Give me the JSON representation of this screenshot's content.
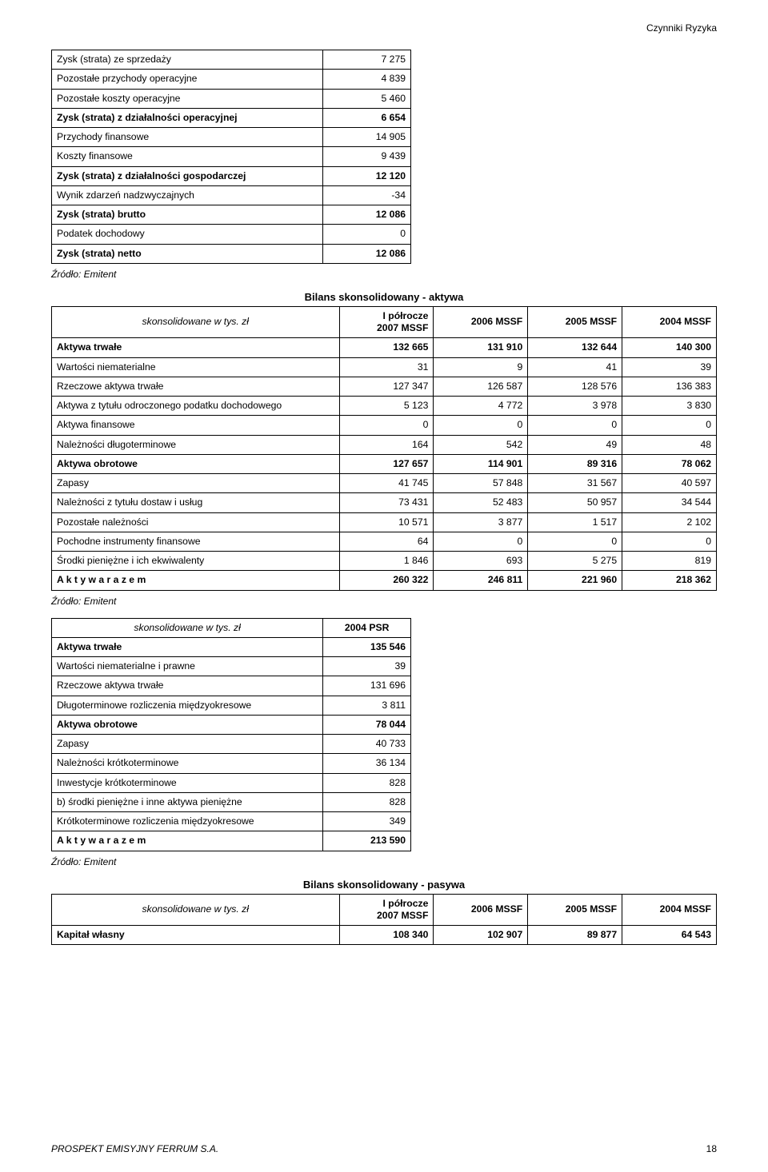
{
  "page": {
    "cornerTop": "Czynniki Ryzyka",
    "footerLeft": "PROSPEKT EMISYJNY FERRUM S.A.",
    "footerRight": "18",
    "sourceNote": "Źródło: Emitent"
  },
  "table1": {
    "rows": [
      {
        "label": "Zysk (strata) ze sprzedaży",
        "value": "7 275",
        "bold": false
      },
      {
        "label": "Pozostałe przychody operacyjne",
        "value": "4 839",
        "bold": false
      },
      {
        "label": "Pozostałe koszty operacyjne",
        "value": "5 460",
        "bold": false
      },
      {
        "label": "Zysk (strata) z działalności operacyjnej",
        "value": "6 654",
        "bold": true
      },
      {
        "label": "Przychody finansowe",
        "value": "14 905",
        "bold": false
      },
      {
        "label": "Koszty finansowe",
        "value": "9 439",
        "bold": false
      },
      {
        "label": "Zysk (strata) z działalności gospodarczej",
        "value": "12 120",
        "bold": true
      },
      {
        "label": "Wynik zdarzeń nadzwyczajnych",
        "value": "-34",
        "bold": false
      },
      {
        "label": "Zysk (strata) brutto",
        "value": "12 086",
        "bold": true
      },
      {
        "label": "Podatek dochodowy",
        "value": "0",
        "bold": false
      },
      {
        "label": "Zysk (strata) netto",
        "value": "12 086",
        "bold": true
      }
    ]
  },
  "table2": {
    "title": "Bilans skonsolidowany - aktywa",
    "headerUnit": "skonsolidowane w tys. zł",
    "headers": [
      "I półrocze\n2007 MSSF",
      "2006 MSSF",
      "2005 MSSF",
      "2004 MSSF"
    ],
    "rows": [
      {
        "label": "Aktywa trwałe",
        "v": [
          "132 665",
          "131 910",
          "132 644",
          "140 300"
        ],
        "bold": true
      },
      {
        "label": "Wartości niematerialne",
        "v": [
          "31",
          "9",
          "41",
          "39"
        ],
        "bold": false
      },
      {
        "label": "Rzeczowe aktywa trwałe",
        "v": [
          "127 347",
          "126 587",
          "128 576",
          "136 383"
        ],
        "bold": false
      },
      {
        "label": "Aktywa z tytułu odroczonego podatku dochodowego",
        "v": [
          "5 123",
          "4 772",
          "3 978",
          "3 830"
        ],
        "bold": false
      },
      {
        "label": "Aktywa finansowe",
        "v": [
          "0",
          "0",
          "0",
          "0"
        ],
        "bold": false
      },
      {
        "label": "Należności długoterminowe",
        "v": [
          "164",
          "542",
          "49",
          "48"
        ],
        "bold": false
      },
      {
        "label": "Aktywa obrotowe",
        "v": [
          "127 657",
          "114 901",
          "89 316",
          "78 062"
        ],
        "bold": true
      },
      {
        "label": "Zapasy",
        "v": [
          "41 745",
          "57 848",
          "31 567",
          "40 597"
        ],
        "bold": false
      },
      {
        "label": "Należności z tytułu dostaw i usług",
        "v": [
          "73 431",
          "52 483",
          "50 957",
          "34 544"
        ],
        "bold": false
      },
      {
        "label": "Pozostałe należności",
        "v": [
          "10 571",
          "3 877",
          "1 517",
          "2 102"
        ],
        "bold": false
      },
      {
        "label": "Pochodne instrumenty finansowe",
        "v": [
          "64",
          "0",
          "0",
          "0"
        ],
        "bold": false
      },
      {
        "label": "Środki pieniężne i ich ekwiwalenty",
        "v": [
          "1 846",
          "693",
          "5 275",
          "819"
        ],
        "bold": false
      },
      {
        "label": "A k t y w a  r a z e m",
        "v": [
          "260 322",
          "246 811",
          "221 960",
          "218 362"
        ],
        "bold": true
      }
    ]
  },
  "table3": {
    "headerUnit": "skonsolidowane w tys. zł",
    "headerCol": "2004 PSR",
    "rows": [
      {
        "label": "Aktywa trwałe",
        "value": "135 546",
        "bold": true
      },
      {
        "label": "Wartości niematerialne i prawne",
        "value": "39",
        "bold": false
      },
      {
        "label": "Rzeczowe aktywa trwałe",
        "value": "131 696",
        "bold": false
      },
      {
        "label": "Długoterminowe rozliczenia międzyokresowe",
        "value": "3 811",
        "bold": false
      },
      {
        "label": "Aktywa obrotowe",
        "value": "78 044",
        "bold": true
      },
      {
        "label": "Zapasy",
        "value": "40 733",
        "bold": false
      },
      {
        "label": "Należności krótkoterminowe",
        "value": "36 134",
        "bold": false
      },
      {
        "label": "Inwestycje krótkoterminowe",
        "value": "828",
        "bold": false
      },
      {
        "label": " b) środki pieniężne i inne aktywa pieniężne",
        "value": "828",
        "bold": false
      },
      {
        "label": "Krótkoterminowe rozliczenia międzyokresowe",
        "value": "349",
        "bold": false
      },
      {
        "label": "A k t y w a  r a z e m",
        "value": "213 590",
        "bold": true
      }
    ]
  },
  "table4": {
    "title": "Bilans skonsolidowany - pasywa",
    "headerUnit": "skonsolidowane w tys. zł",
    "headers": [
      "I półrocze\n2007 MSSF",
      "2006 MSSF",
      "2005 MSSF",
      "2004 MSSF"
    ],
    "rows": [
      {
        "label": "Kapitał własny",
        "v": [
          "108 340",
          "102 907",
          "89 877",
          "64 543"
        ],
        "bold": true
      }
    ]
  }
}
